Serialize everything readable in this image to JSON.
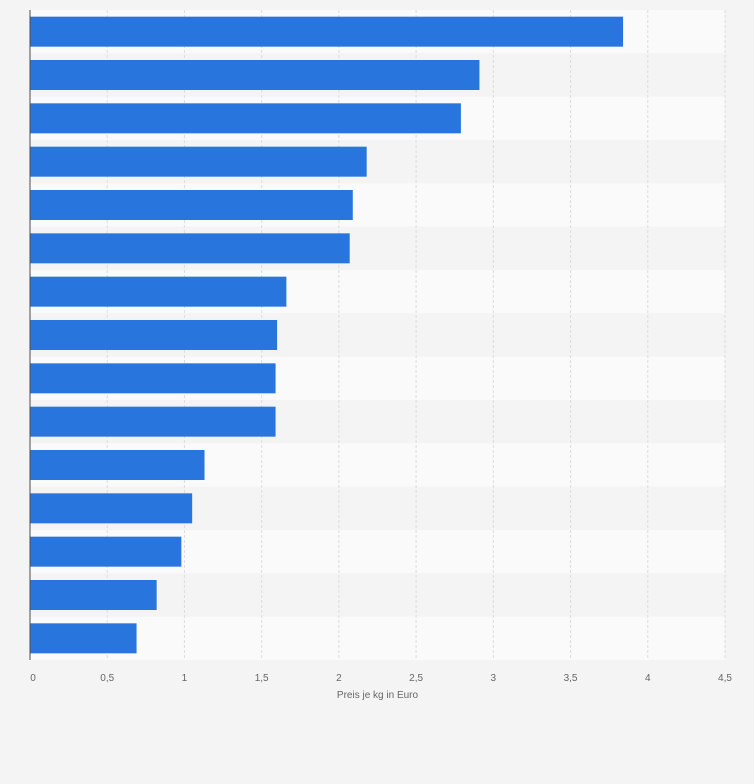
{
  "chart_data": {
    "type": "bar",
    "orientation": "horizontal",
    "title": "",
    "xlabel": "Preis je kg in Euro",
    "ylabel": "",
    "xlim": [
      0,
      4.5
    ],
    "xticks": [
      0,
      0.5,
      1,
      1.5,
      2,
      2.5,
      3,
      3.5,
      4,
      4.5
    ],
    "xtick_labels": [
      "0",
      "0,5",
      "1",
      "1,5",
      "2",
      "2,5",
      "3",
      "3,5",
      "4",
      "4,5"
    ],
    "values": [
      3.84,
      2.91,
      2.79,
      2.18,
      2.09,
      2.07,
      1.66,
      1.6,
      1.59,
      1.59,
      1.13,
      1.05,
      0.98,
      0.82,
      0.69
    ],
    "grid": true,
    "colors": {
      "bar": "#2876dd",
      "band_a": "#fafafa",
      "band_b": "#f4f4f4",
      "grid": "#dddddd",
      "axis": "#4b4b4b",
      "text": "#666666"
    }
  }
}
